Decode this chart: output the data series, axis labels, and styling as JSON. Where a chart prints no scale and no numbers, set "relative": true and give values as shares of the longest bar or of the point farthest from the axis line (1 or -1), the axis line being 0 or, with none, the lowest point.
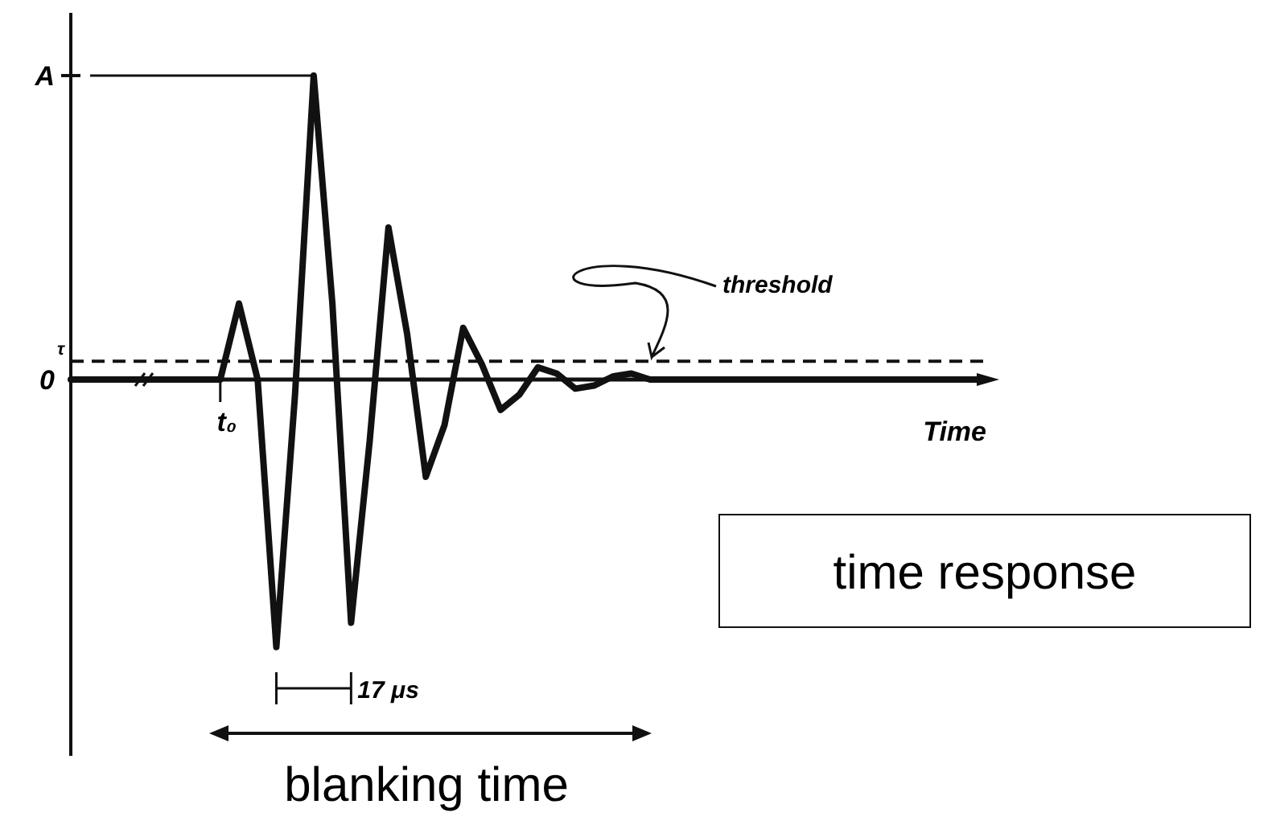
{
  "chart_data": {
    "type": "line",
    "relative": true,
    "xlabel": "Time",
    "marker": "none",
    "line_style": "solid",
    "categories": [
      null,
      null,
      null,
      null,
      null,
      null,
      null,
      null,
      null,
      null,
      null,
      null,
      null,
      null,
      null,
      null,
      null,
      null,
      null,
      null,
      null,
      null,
      null,
      null,
      null,
      null,
      null,
      null,
      null,
      null,
      null,
      null,
      null,
      null,
      null,
      null,
      null,
      null,
      null,
      null,
      null,
      null,
      null,
      null,
      null,
      null,
      null,
      null,
      null,
      null
    ],
    "series": [
      {
        "color": "#111111",
        "values": [
          0,
          0,
          0,
          0,
          0,
          0,
          0,
          0,
          0,
          0.25,
          0,
          -0.88,
          -0.05,
          1,
          0.25,
          -0.8,
          -0.2,
          0.5,
          0.15,
          -0.32,
          -0.15,
          0.17,
          0.05,
          -0.1,
          -0.05,
          0.04,
          0.02,
          -0.03,
          -0.02,
          0.01,
          0.02,
          0,
          0,
          0,
          0,
          0,
          0,
          0,
          0,
          0,
          0,
          0,
          0,
          0,
          0,
          0,
          0,
          0,
          0,
          0
        ]
      }
    ],
    "ref_lines": [
      {
        "axis": "y",
        "value": 0.06,
        "label": "τ",
        "line_style": "dashed",
        "color": "#111111"
      }
    ],
    "annotations": [
      "A",
      "0",
      "t₀",
      "threshold",
      "17 μs",
      "blanking time",
      "time response"
    ]
  }
}
